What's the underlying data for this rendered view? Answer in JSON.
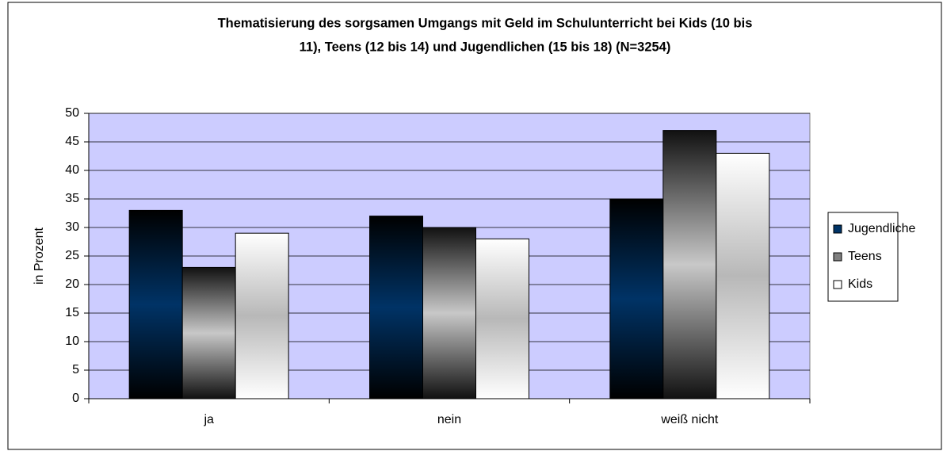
{
  "chart_data": {
    "type": "bar",
    "title": [
      "Thematisierung des sorgsamen Umgangs mit Geld im Schulunterricht bei Kids (10 bis",
      "11), Teens (12 bis 14) und Jugendlichen (15 bis 18) (N=3254)"
    ],
    "y_label": "in Prozent",
    "categories": [
      "ja",
      "nein",
      "weiß nicht"
    ],
    "series": [
      {
        "name": "Jugendliche",
        "color": "#003366",
        "values": [
          33,
          32,
          35
        ]
      },
      {
        "name": "Teens",
        "color": "#808080",
        "values": [
          23,
          30,
          47
        ]
      },
      {
        "name": "Kids",
        "color": "#ffffff",
        "values": [
          29,
          28,
          43
        ]
      }
    ],
    "ylim": [
      0,
      50
    ],
    "yticks": [
      0,
      5,
      10,
      15,
      20,
      25,
      30,
      35,
      40,
      45,
      50
    ],
    "grid": true,
    "legend": "right"
  }
}
